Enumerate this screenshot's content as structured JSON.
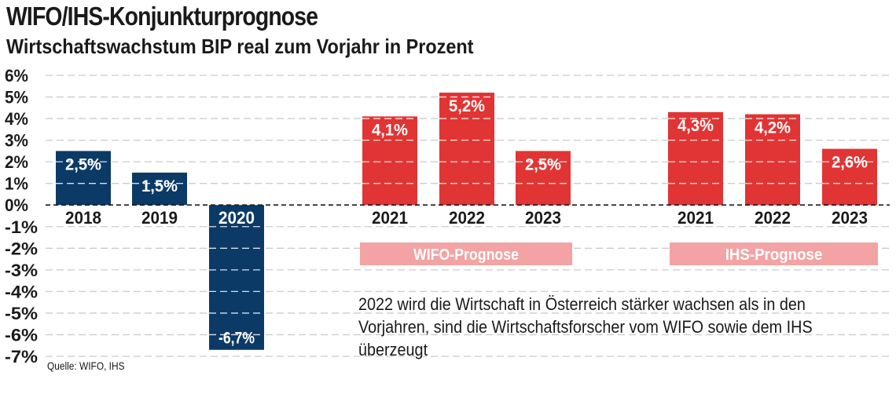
{
  "title": "WIFO/IHS-Konjunkturprognose",
  "subtitle": "Wirtschaftswachstum BIP real zum Vorjahr in Prozent",
  "annotation": "2022 wird die Wirtschaft in Österreich stärker wachsen als in den Vorjahren, sind die Wirtschaftsforscher vom WIFO sowie dem IHS überzeugt",
  "source": "Quelle: WIFO, IHS",
  "colors": {
    "historic": "#0b3a66",
    "forecast": "#e03534",
    "group_label_bg": "#f3a3a3",
    "grid": "#cccccc"
  },
  "chart_data": {
    "type": "bar",
    "ylim": [
      -7,
      6
    ],
    "yticks": [
      "6%",
      "5%",
      "4%",
      "3%",
      "2%",
      "1%",
      "0%",
      "-1%",
      "-2%",
      "-3%",
      "-4%",
      "-5%",
      "-6%",
      "-7%"
    ],
    "groups": [
      {
        "label": "",
        "kind": "historic",
        "bars": [
          {
            "x": "2018",
            "value": 2.5,
            "label": "2,5%"
          },
          {
            "x": "2019",
            "value": 1.5,
            "label": "1,5%"
          },
          {
            "x": "2020",
            "value": -6.7,
            "label": "-6,7%"
          }
        ]
      },
      {
        "label": "WIFO-Prognose",
        "kind": "forecast",
        "bars": [
          {
            "x": "2021",
            "value": 4.1,
            "label": "4,1%"
          },
          {
            "x": "2022",
            "value": 5.2,
            "label": "5,2%"
          },
          {
            "x": "2023",
            "value": 2.5,
            "label": "2,5%"
          }
        ]
      },
      {
        "label": "IHS-Prognose",
        "kind": "forecast",
        "bars": [
          {
            "x": "2021",
            "value": 4.3,
            "label": "4,3%"
          },
          {
            "x": "2022",
            "value": 4.2,
            "label": "4,2%"
          },
          {
            "x": "2023",
            "value": 2.6,
            "label": "2,6%"
          }
        ]
      }
    ]
  }
}
